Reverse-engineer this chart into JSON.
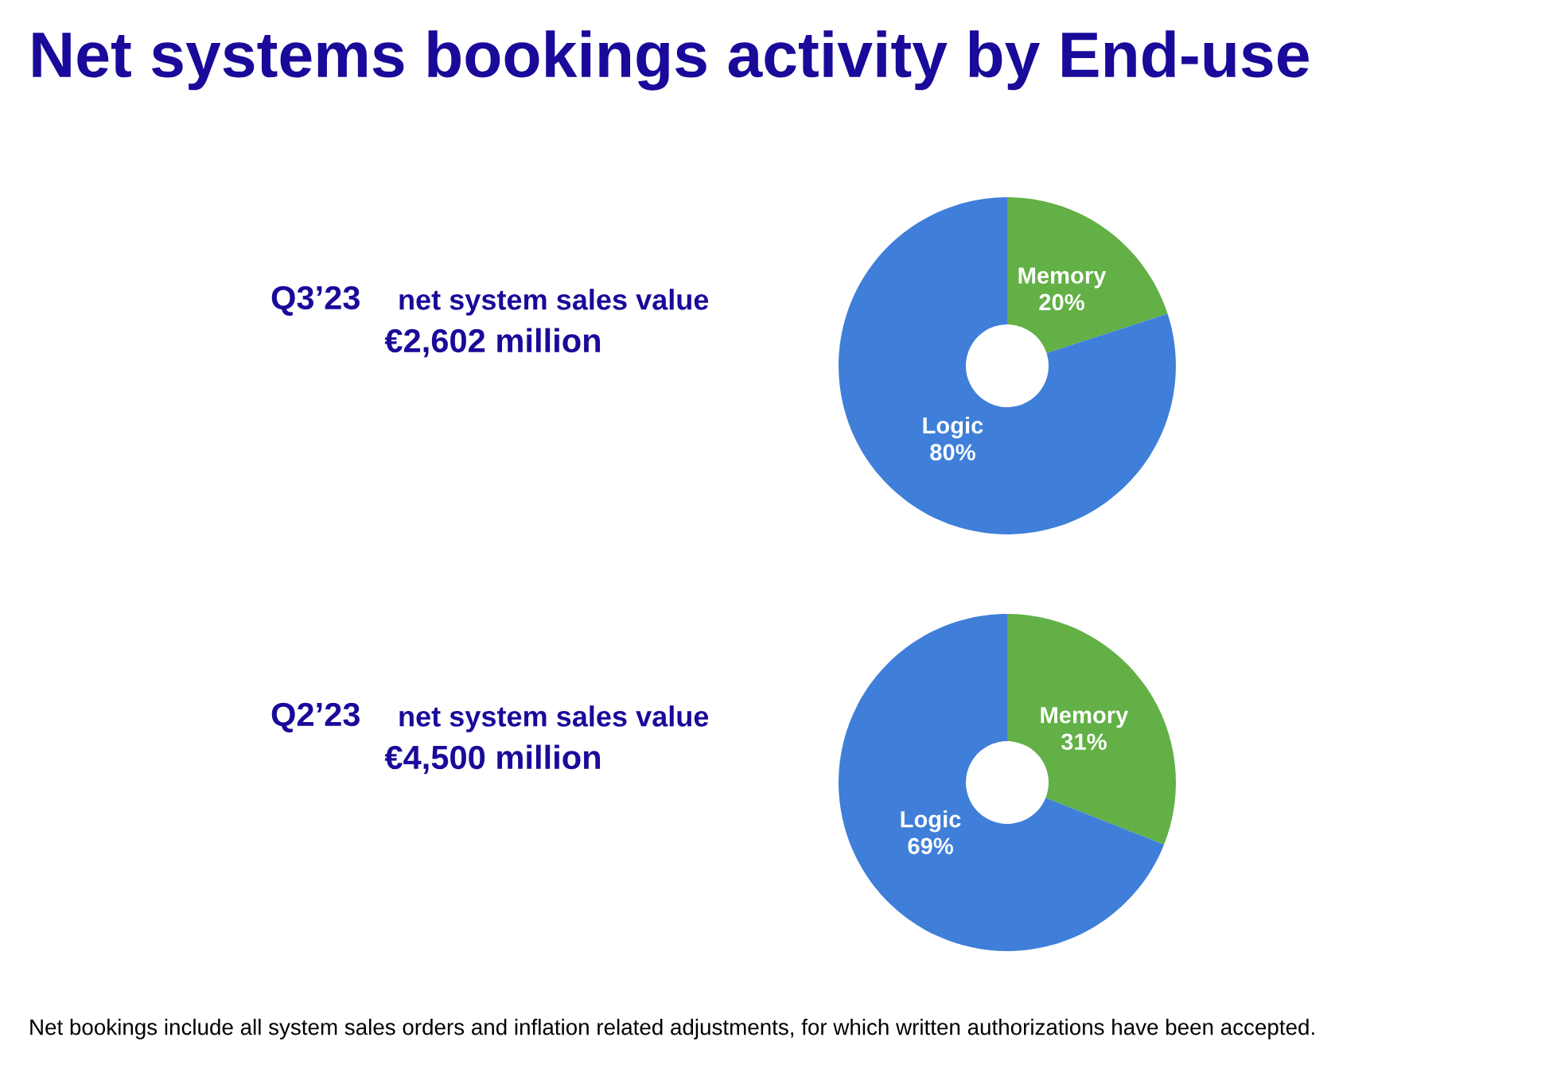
{
  "chart_data": [
    {
      "type": "donut",
      "title": "Net systems bookings activity by End-use",
      "categories": [
        "Memory",
        "Logic"
      ],
      "values": [
        20,
        80
      ],
      "colors": [
        "#62b046",
        "#3f7fd9"
      ],
      "value_labels": [
        "20%",
        "80%"
      ],
      "annotations": [
        "Q3’23",
        "net system sales value",
        "€2,602 million"
      ]
    },
    {
      "type": "donut",
      "categories": [
        "Memory",
        "Logic"
      ],
      "values": [
        31,
        69
      ],
      "colors": [
        "#62b046",
        "#3f7fd9"
      ],
      "value_labels": [
        "31%",
        "69%"
      ],
      "annotations": [
        "Q2’23",
        "net system sales value",
        "€4,500 million",
        "Net bookings include all system sales orders and inflation related adjustments, for which written authorizations have been accepted."
      ]
    }
  ]
}
